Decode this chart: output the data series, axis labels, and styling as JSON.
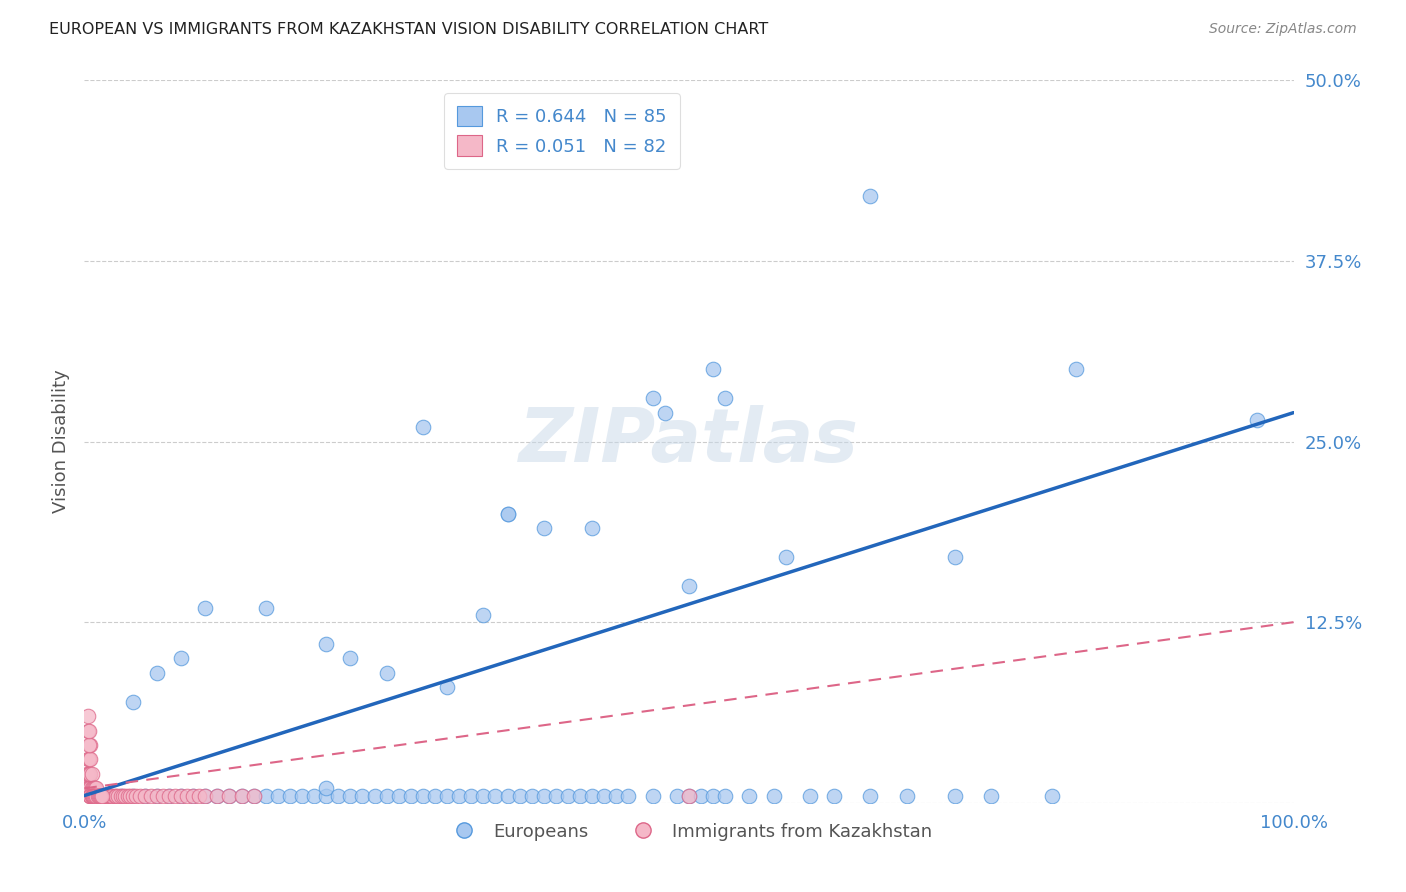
{
  "title": "EUROPEAN VS IMMIGRANTS FROM KAZAKHSTAN VISION DISABILITY CORRELATION CHART",
  "source": "Source: ZipAtlas.com",
  "ylabel": "Vision Disability",
  "blue_color": "#a8c8f0",
  "blue_edge_color": "#5599dd",
  "blue_line_color": "#2266bb",
  "pink_color": "#f5b8c8",
  "pink_edge_color": "#dd6688",
  "pink_line_color": "#dd6688",
  "legend_R1": "R = 0.644",
  "legend_N1": "N = 85",
  "legend_R2": "R = 0.051",
  "legend_N2": "N = 82",
  "watermark": "ZIPatlas",
  "blue_trend_x": [
    0.0,
    1.0
  ],
  "blue_trend_y": [
    0.005,
    0.27
  ],
  "pink_trend_x": [
    0.0,
    1.0
  ],
  "pink_trend_y": [
    0.01,
    0.125
  ],
  "xlim": [
    0.0,
    1.0
  ],
  "ylim": [
    0.0,
    0.5
  ],
  "background_color": "#ffffff",
  "grid_color": "#cccccc",
  "tick_color": "#4488cc",
  "axis_label_color": "#555555",
  "title_color": "#222222",
  "blue_x": [
    0.02,
    0.03,
    0.04,
    0.05,
    0.06,
    0.07,
    0.08,
    0.09,
    0.1,
    0.11,
    0.12,
    0.13,
    0.14,
    0.15,
    0.16,
    0.17,
    0.18,
    0.19,
    0.2,
    0.2,
    0.21,
    0.22,
    0.23,
    0.24,
    0.25,
    0.26,
    0.27,
    0.28,
    0.29,
    0.3,
    0.31,
    0.32,
    0.33,
    0.34,
    0.35,
    0.36,
    0.37,
    0.38,
    0.39,
    0.4,
    0.41,
    0.42,
    0.43,
    0.44,
    0.45,
    0.47,
    0.49,
    0.5,
    0.51,
    0.52,
    0.53,
    0.55,
    0.57,
    0.6,
    0.62,
    0.65,
    0.68,
    0.72,
    0.75,
    0.8,
    0.97,
    0.35,
    0.38,
    0.42,
    0.47,
    0.48,
    0.5,
    0.52,
    0.53,
    0.58,
    0.65,
    0.72,
    0.82,
    0.2,
    0.22,
    0.28,
    0.33,
    0.35,
    0.3,
    0.25,
    0.15,
    0.1,
    0.08,
    0.06,
    0.04
  ],
  "blue_y": [
    0.005,
    0.005,
    0.005,
    0.005,
    0.005,
    0.005,
    0.005,
    0.005,
    0.005,
    0.005,
    0.005,
    0.005,
    0.005,
    0.005,
    0.005,
    0.005,
    0.005,
    0.005,
    0.005,
    0.01,
    0.005,
    0.005,
    0.005,
    0.005,
    0.005,
    0.005,
    0.005,
    0.005,
    0.005,
    0.005,
    0.005,
    0.005,
    0.005,
    0.005,
    0.005,
    0.005,
    0.005,
    0.005,
    0.005,
    0.005,
    0.005,
    0.005,
    0.005,
    0.005,
    0.005,
    0.005,
    0.005,
    0.005,
    0.005,
    0.005,
    0.005,
    0.005,
    0.005,
    0.005,
    0.005,
    0.005,
    0.005,
    0.005,
    0.005,
    0.005,
    0.265,
    0.2,
    0.19,
    0.19,
    0.28,
    0.27,
    0.15,
    0.3,
    0.28,
    0.17,
    0.42,
    0.17,
    0.3,
    0.11,
    0.1,
    0.26,
    0.13,
    0.2,
    0.08,
    0.09,
    0.135,
    0.135,
    0.1,
    0.09,
    0.07
  ],
  "pink_x": [
    0.002,
    0.002,
    0.003,
    0.003,
    0.003,
    0.004,
    0.004,
    0.004,
    0.005,
    0.005,
    0.005,
    0.005,
    0.005,
    0.006,
    0.006,
    0.006,
    0.007,
    0.007,
    0.008,
    0.008,
    0.009,
    0.009,
    0.01,
    0.01,
    0.011,
    0.012,
    0.013,
    0.014,
    0.015,
    0.016,
    0.017,
    0.018,
    0.019,
    0.02,
    0.021,
    0.022,
    0.023,
    0.025,
    0.026,
    0.028,
    0.03,
    0.032,
    0.034,
    0.036,
    0.038,
    0.04,
    0.043,
    0.046,
    0.05,
    0.055,
    0.06,
    0.065,
    0.07,
    0.075,
    0.08,
    0.085,
    0.09,
    0.095,
    0.1,
    0.11,
    0.12,
    0.13,
    0.14,
    0.5,
    0.003,
    0.003,
    0.004,
    0.004,
    0.005,
    0.005,
    0.006,
    0.006,
    0.007,
    0.007,
    0.008,
    0.009,
    0.01,
    0.011,
    0.012,
    0.013,
    0.014,
    0.015
  ],
  "pink_y": [
    0.01,
    0.02,
    0.01,
    0.02,
    0.03,
    0.01,
    0.02,
    0.03,
    0.005,
    0.01,
    0.02,
    0.03,
    0.04,
    0.005,
    0.01,
    0.02,
    0.005,
    0.01,
    0.005,
    0.01,
    0.005,
    0.01,
    0.005,
    0.01,
    0.005,
    0.005,
    0.005,
    0.005,
    0.005,
    0.005,
    0.005,
    0.005,
    0.005,
    0.005,
    0.005,
    0.005,
    0.005,
    0.005,
    0.005,
    0.005,
    0.005,
    0.005,
    0.005,
    0.005,
    0.005,
    0.005,
    0.005,
    0.005,
    0.005,
    0.005,
    0.005,
    0.005,
    0.005,
    0.005,
    0.005,
    0.005,
    0.005,
    0.005,
    0.005,
    0.005,
    0.005,
    0.005,
    0.005,
    0.005,
    0.05,
    0.06,
    0.04,
    0.05,
    0.005,
    0.005,
    0.005,
    0.005,
    0.005,
    0.005,
    0.005,
    0.005,
    0.005,
    0.005,
    0.005,
    0.005,
    0.005,
    0.005
  ]
}
